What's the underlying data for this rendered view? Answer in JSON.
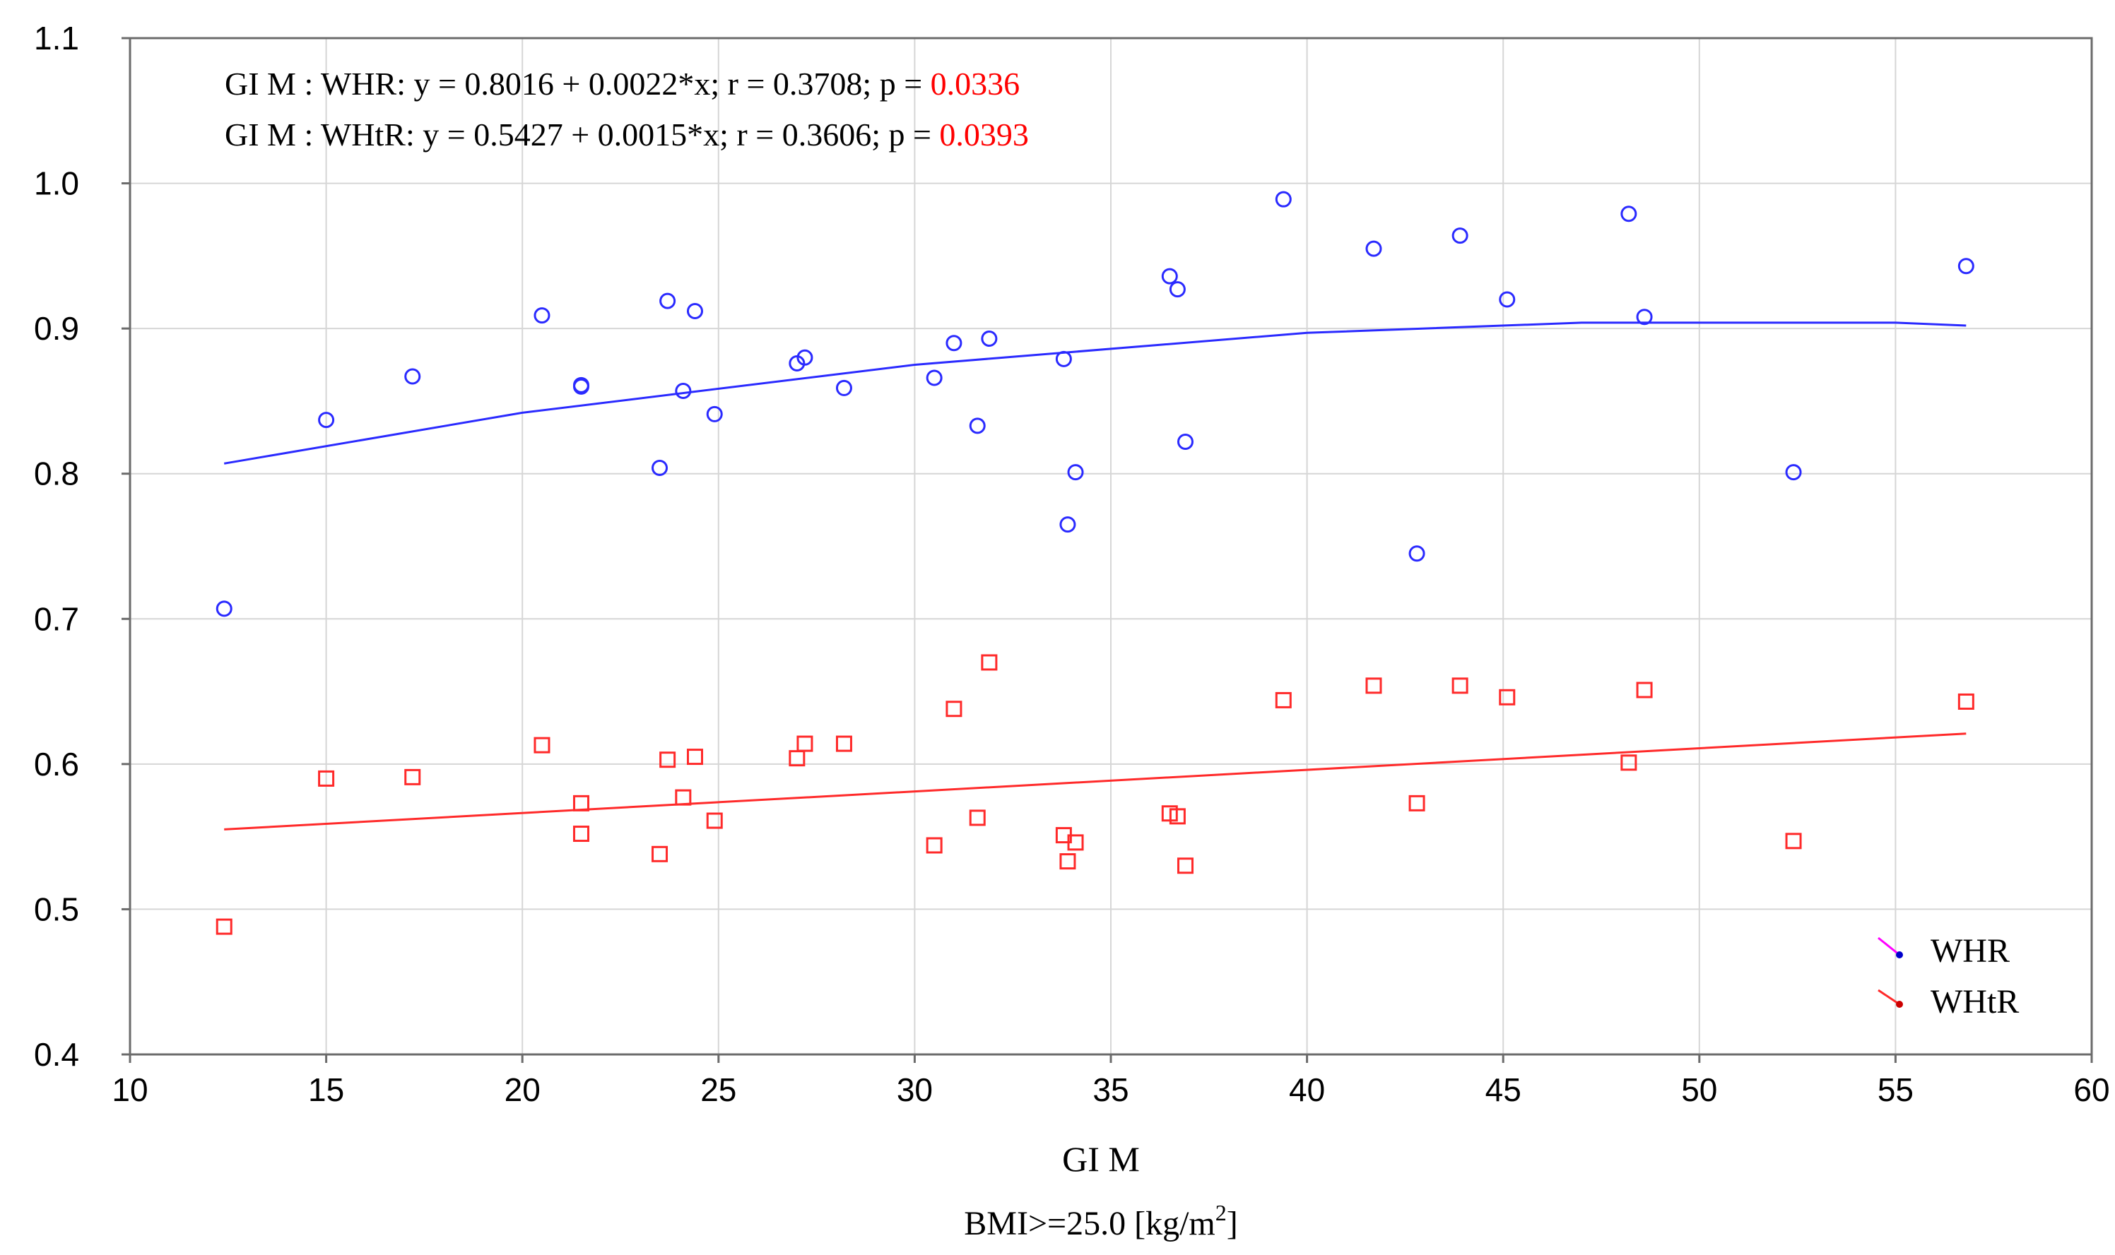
{
  "colors": {
    "whr": "#2a2aff",
    "whtr": "#ff2a2a",
    "pvalue": "#ff0000",
    "grid": "#d6d6d6"
  },
  "annotations": [
    {
      "prefix": "GI M : WHR: y = 0.8016 + 0.0022*x;  r = 0.3708; p = ",
      "p": "0.0336"
    },
    {
      "prefix": "GI M : WHtR: y = 0.5427 + 0.0015*x;  r = 0.3606; p = ",
      "p": "0.0393"
    }
  ],
  "chart_data": {
    "type": "scatter",
    "title": "",
    "xlabel": "GI M",
    "subtitle_main": "BMI>=25.0 [kg/m",
    "subtitle_sup": "2",
    "subtitle_end": "]",
    "ylabel": "",
    "xlim": [
      10,
      60
    ],
    "ylim": [
      0.4,
      1.1
    ],
    "xticks": [
      10,
      15,
      20,
      25,
      30,
      35,
      40,
      45,
      50,
      55,
      60
    ],
    "yticks": [
      0.4,
      0.5,
      0.6,
      0.7,
      0.8,
      0.9,
      1.0,
      1.1
    ],
    "ytick_labels": [
      "0.4",
      "0.5",
      "0.6",
      "0.7",
      "0.8",
      "0.9",
      "1.0",
      "1.1"
    ],
    "legend": {
      "position": "bottom-right",
      "entries": [
        "WHR",
        "WHtR"
      ]
    },
    "series": [
      {
        "name": "WHR",
        "marker": "circle",
        "points": [
          [
            12.4,
            0.707
          ],
          [
            15.0,
            0.837
          ],
          [
            17.2,
            0.867
          ],
          [
            20.5,
            0.909
          ],
          [
            21.5,
            0.861
          ],
          [
            21.5,
            0.86
          ],
          [
            23.5,
            0.804
          ],
          [
            23.7,
            0.919
          ],
          [
            24.1,
            0.857
          ],
          [
            24.4,
            0.912
          ],
          [
            24.9,
            0.841
          ],
          [
            27.0,
            0.876
          ],
          [
            27.2,
            0.88
          ],
          [
            28.2,
            0.859
          ],
          [
            30.5,
            0.866
          ],
          [
            31.0,
            0.89
          ],
          [
            31.6,
            0.833
          ],
          [
            31.9,
            0.893
          ],
          [
            33.8,
            0.879
          ],
          [
            33.9,
            0.765
          ],
          [
            34.1,
            0.801
          ],
          [
            36.5,
            0.936
          ],
          [
            36.7,
            0.927
          ],
          [
            36.9,
            0.822
          ],
          [
            39.4,
            0.989
          ],
          [
            41.7,
            0.955
          ],
          [
            42.8,
            0.745
          ],
          [
            43.9,
            0.964
          ],
          [
            45.1,
            0.92
          ],
          [
            48.2,
            0.979
          ],
          [
            48.6,
            0.908
          ],
          [
            52.4,
            0.801
          ],
          [
            56.8,
            0.943
          ]
        ],
        "fit": [
          [
            12.4,
            0.807
          ],
          [
            20,
            0.842
          ],
          [
            30,
            0.875
          ],
          [
            40,
            0.897
          ],
          [
            47,
            0.904
          ],
          [
            55,
            0.904
          ],
          [
            56.8,
            0.902
          ]
        ]
      },
      {
        "name": "WHtR",
        "marker": "square",
        "points": [
          [
            12.4,
            0.488
          ],
          [
            15.0,
            0.59
          ],
          [
            17.2,
            0.591
          ],
          [
            20.5,
            0.613
          ],
          [
            21.5,
            0.573
          ],
          [
            21.5,
            0.552
          ],
          [
            23.5,
            0.538
          ],
          [
            23.7,
            0.603
          ],
          [
            24.1,
            0.577
          ],
          [
            24.4,
            0.605
          ],
          [
            24.9,
            0.561
          ],
          [
            27.0,
            0.604
          ],
          [
            27.2,
            0.614
          ],
          [
            28.2,
            0.614
          ],
          [
            30.5,
            0.544
          ],
          [
            31.0,
            0.638
          ],
          [
            31.6,
            0.563
          ],
          [
            31.9,
            0.67
          ],
          [
            33.8,
            0.551
          ],
          [
            33.9,
            0.533
          ],
          [
            34.1,
            0.546
          ],
          [
            36.5,
            0.566
          ],
          [
            36.7,
            0.564
          ],
          [
            36.9,
            0.53
          ],
          [
            39.4,
            0.644
          ],
          [
            41.7,
            0.654
          ],
          [
            42.8,
            0.573
          ],
          [
            43.9,
            0.654
          ],
          [
            45.1,
            0.646
          ],
          [
            48.2,
            0.601
          ],
          [
            48.6,
            0.651
          ],
          [
            52.4,
            0.547
          ],
          [
            56.8,
            0.643
          ]
        ],
        "fit": [
          [
            12.4,
            0.555
          ],
          [
            56.8,
            0.621
          ]
        ]
      }
    ]
  }
}
